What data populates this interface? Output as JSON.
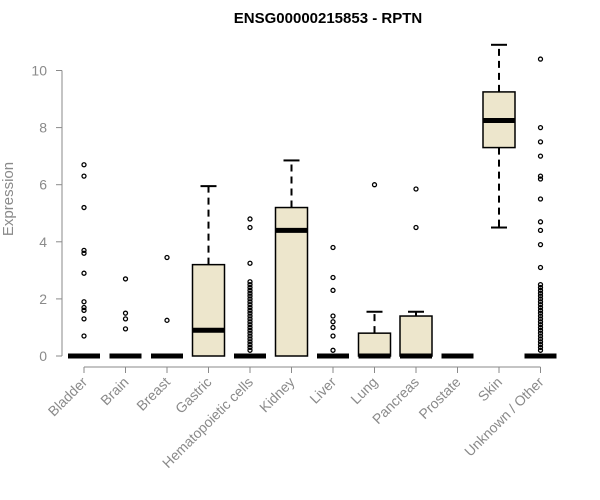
{
  "chart_data": {
    "type": "box",
    "title": "ENSG00000215853 - RPTN",
    "ylabel": "Expression",
    "xlabel": "",
    "ylim": [
      0,
      10.9
    ],
    "yticks": [
      0,
      2,
      4,
      6,
      8,
      10
    ],
    "grid": false,
    "colors": {
      "box_fill": "#ede6cc",
      "stroke": "#000000",
      "axis": "#8a8a8a"
    },
    "categories": [
      "Bladder",
      "Brain",
      "Breast",
      "Gastric",
      "Hematopoietic cells",
      "Kidney",
      "Liver",
      "Lung",
      "Pancreas",
      "Prostate",
      "Skin",
      "Unknown / Other"
    ],
    "boxes": [
      {
        "q1": 0,
        "median": 0,
        "q3": 0,
        "whisker_low": 0,
        "whisker_high": 0,
        "outliers": [
          6.7,
          6.3,
          5.2,
          3.7,
          3.6,
          2.9,
          1.9,
          1.7,
          1.6,
          1.3,
          0.7
        ]
      },
      {
        "q1": 0,
        "median": 0,
        "q3": 0,
        "whisker_low": 0,
        "whisker_high": 0,
        "outliers": [
          2.7,
          1.5,
          1.3,
          0.95
        ]
      },
      {
        "q1": 0,
        "median": 0,
        "q3": 0,
        "whisker_low": 0,
        "whisker_high": 0,
        "outliers": [
          3.45,
          1.25
        ]
      },
      {
        "q1": 0,
        "median": 0.9,
        "q3": 3.2,
        "whisker_low": 0,
        "whisker_high": 5.95,
        "outliers": []
      },
      {
        "q1": 0,
        "median": 0,
        "q3": 0,
        "whisker_low": 0,
        "whisker_high": 0,
        "outliers": [
          4.8,
          4.5,
          3.25,
          2.6,
          2.5,
          2.4,
          2.3,
          2.2,
          2.1,
          2.0,
          1.9,
          1.8,
          1.7,
          1.6,
          1.5,
          1.4,
          1.3,
          1.2,
          1.1,
          1.0,
          0.9,
          0.8,
          0.7,
          0.6,
          0.5,
          0.4,
          0.3,
          0.2
        ]
      },
      {
        "q1": 0,
        "median": 4.4,
        "q3": 5.2,
        "whisker_low": 0,
        "whisker_high": 6.85,
        "outliers": []
      },
      {
        "q1": 0,
        "median": 0,
        "q3": 0,
        "whisker_low": 0,
        "whisker_high": 0,
        "outliers": [
          3.8,
          2.75,
          2.3,
          1.4,
          1.2,
          1.0,
          0.7,
          0.2
        ]
      },
      {
        "q1": 0,
        "median": 0,
        "q3": 0.8,
        "whisker_low": 0,
        "whisker_high": 1.55,
        "outliers": [
          6.0
        ]
      },
      {
        "q1": 0,
        "median": 0,
        "q3": 1.4,
        "whisker_low": 0,
        "whisker_high": 1.55,
        "outliers": [
          5.85,
          4.5
        ]
      },
      {
        "q1": 0,
        "median": 0,
        "q3": 0,
        "whisker_low": 0,
        "whisker_high": 0,
        "outliers": []
      },
      {
        "q1": 7.3,
        "median": 8.25,
        "q3": 9.25,
        "whisker_low": 4.5,
        "whisker_high": 10.9,
        "outliers": []
      },
      {
        "q1": 0,
        "median": 0,
        "q3": 0,
        "whisker_low": 0,
        "whisker_high": 0,
        "outliers": [
          10.4,
          8.0,
          7.5,
          7.0,
          6.3,
          6.2,
          5.5,
          4.7,
          4.4,
          3.9,
          3.1,
          2.5,
          2.4,
          2.3,
          2.2,
          2.1,
          2.0,
          1.9,
          1.8,
          1.7,
          1.6,
          1.5,
          1.4,
          1.3,
          1.2,
          1.1,
          1.0,
          0.9,
          0.8,
          0.7,
          0.6,
          0.5,
          0.4,
          0.3,
          0.2
        ]
      }
    ]
  }
}
